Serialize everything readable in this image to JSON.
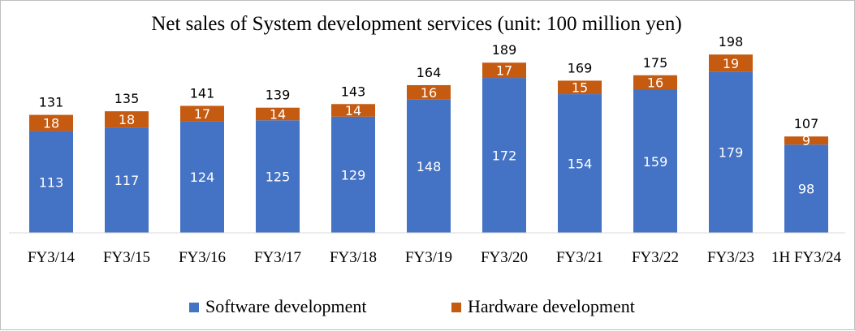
{
  "chart_data": {
    "type": "bar",
    "stacked": true,
    "title": "Net sales of System development services (unit: 100 million yen)",
    "categories": [
      "FY3/14",
      "FY3/15",
      "FY3/16",
      "FY3/17",
      "FY3/18",
      "FY3/19",
      "FY3/20",
      "FY3/21",
      "FY3/22",
      "FY3/23",
      "1H FY3/24"
    ],
    "series": [
      {
        "name": "Software development",
        "color": "#4472c4",
        "values": [
          113,
          117,
          124,
          125,
          129,
          148,
          172,
          154,
          159,
          179,
          98
        ]
      },
      {
        "name": "Hardware development",
        "color": "#c55a11",
        "values": [
          18,
          18,
          17,
          14,
          14,
          16,
          17,
          15,
          16,
          19,
          9
        ]
      }
    ],
    "totals": [
      131,
      135,
      141,
      139,
      143,
      164,
      189,
      169,
      175,
      198,
      107
    ],
    "ylim": [
      0,
      230
    ],
    "grid": false,
    "legend_position": "bottom",
    "xlabel": "",
    "ylabel": ""
  }
}
